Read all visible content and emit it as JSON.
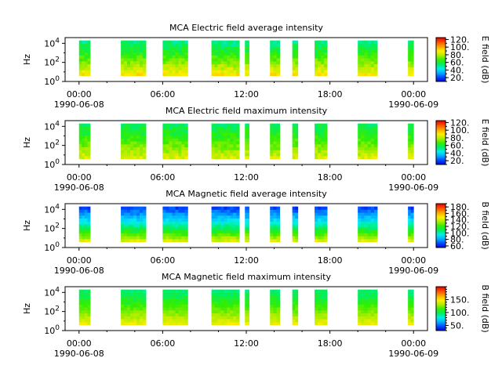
{
  "figure": {
    "colorscale": [
      "#0000cc",
      "#0044ff",
      "#00aaff",
      "#00eeee",
      "#00ee66",
      "#33ee00",
      "#aaee00",
      "#ffee00",
      "#ffaa00",
      "#ff5500",
      "#ee0000"
    ]
  },
  "chart_data": [
    {
      "type": "heatmap",
      "title": "MCA  Electric field average intensity",
      "ylabel": "Hz",
      "colorbar_label": "E field (dB)",
      "colorbar_ticks": [
        "20.",
        "40.",
        "60.",
        "80.",
        "100.",
        "120."
      ],
      "colorbar_tick_values": [
        20,
        40,
        60,
        80,
        100,
        120
      ],
      "zlim": [
        10,
        125
      ],
      "y_scale": "log",
      "y_tick_labels": [
        {
          "base": "10",
          "exp": "0"
        },
        {
          "base": "10",
          "exp": "2"
        },
        {
          "base": "10",
          "exp": "4"
        }
      ],
      "y_tick_values": [
        0,
        2,
        4
      ],
      "x_tick_labels": [
        "00:00",
        "06:00",
        "12:00",
        "18:00",
        "00:00"
      ],
      "x_tick_hours": [
        0,
        6,
        12,
        18,
        24
      ],
      "x_date_labels": [
        "1990-06-08",
        "1990-06-09"
      ],
      "x_range_hours": [
        -1.0,
        25.0
      ],
      "y_range_log10": [
        0,
        4.6
      ],
      "data_y_range_log10": [
        0.6,
        4.3
      ],
      "bottom_dB": 95,
      "top_dB": 52,
      "segments": [
        [
          0,
          0.8
        ],
        [
          3.0,
          4.8
        ],
        [
          6.0,
          7.8
        ],
        [
          9.5,
          11.5
        ],
        [
          11.9,
          12.2
        ],
        [
          13.7,
          14.4
        ],
        [
          15.3,
          15.7
        ],
        [
          16.9,
          17.8
        ],
        [
          20.0,
          21.4
        ],
        [
          23.6,
          24.0
        ]
      ]
    },
    {
      "type": "heatmap",
      "title": "MCA  Electric field maximum intensity",
      "ylabel": "Hz",
      "colorbar_label": "E field (dB)",
      "colorbar_ticks": [
        "20.",
        "40.",
        "60.",
        "80.",
        "100.",
        "120."
      ],
      "colorbar_tick_values": [
        20,
        40,
        60,
        80,
        100,
        120
      ],
      "zlim": [
        10,
        125
      ],
      "y_scale": "log",
      "y_tick_labels": [
        {
          "base": "10",
          "exp": "0"
        },
        {
          "base": "10",
          "exp": "2"
        },
        {
          "base": "10",
          "exp": "4"
        }
      ],
      "y_tick_values": [
        0,
        2,
        4
      ],
      "x_tick_labels": [
        "00:00",
        "06:00",
        "12:00",
        "18:00",
        "00:00"
      ],
      "x_tick_hours": [
        0,
        6,
        12,
        18,
        24
      ],
      "x_date_labels": [
        "1990-06-08",
        "1990-06-09"
      ],
      "x_range_hours": [
        -1.0,
        25.0
      ],
      "y_range_log10": [
        0,
        4.6
      ],
      "data_y_range_log10": [
        0.6,
        4.3
      ],
      "bottom_dB": 88,
      "top_dB": 56,
      "segments": [
        [
          0,
          0.8
        ],
        [
          3.0,
          4.8
        ],
        [
          6.0,
          7.8
        ],
        [
          9.5,
          11.5
        ],
        [
          11.9,
          12.2
        ],
        [
          13.7,
          14.4
        ],
        [
          15.3,
          15.7
        ],
        [
          16.9,
          17.8
        ],
        [
          20.0,
          21.4
        ],
        [
          23.6,
          24.0
        ]
      ]
    },
    {
      "type": "heatmap",
      "title": "MCA  Magnetic field average intensity",
      "ylabel": "Hz",
      "colorbar_label": "B field (dB)",
      "colorbar_ticks": [
        "60.",
        "80.",
        "100.",
        "120.",
        "140.",
        "160.",
        "180."
      ],
      "colorbar_tick_values": [
        60,
        80,
        100,
        120,
        140,
        160,
        180
      ],
      "zlim": [
        55,
        190
      ],
      "y_scale": "log",
      "y_tick_labels": [
        {
          "base": "10",
          "exp": "0"
        },
        {
          "base": "10",
          "exp": "2"
        },
        {
          "base": "10",
          "exp": "4"
        }
      ],
      "y_tick_values": [
        0,
        2,
        4
      ],
      "x_tick_labels": [
        "00:00",
        "06:00",
        "12:00",
        "18:00",
        "00:00"
      ],
      "x_tick_hours": [
        0,
        6,
        12,
        18,
        24
      ],
      "x_date_labels": [
        "1990-06-08",
        "1990-06-09"
      ],
      "x_range_hours": [
        -1.0,
        25.0
      ],
      "y_range_log10": [
        0,
        4.6
      ],
      "data_y_range_log10": [
        0.6,
        4.3
      ],
      "bottom_dB": 150,
      "top_dB": 65,
      "segments": [
        [
          0,
          0.8
        ],
        [
          3.0,
          4.8
        ],
        [
          6.0,
          7.8
        ],
        [
          9.5,
          11.5
        ],
        [
          11.9,
          12.2
        ],
        [
          13.7,
          14.4
        ],
        [
          15.3,
          15.7
        ],
        [
          16.9,
          17.8
        ],
        [
          20.0,
          21.4
        ],
        [
          23.6,
          24.0
        ]
      ]
    },
    {
      "type": "heatmap",
      "title": "MCA  Magnetic field maximum intensity",
      "ylabel": "Hz",
      "colorbar_label": "B field (dB)",
      "colorbar_ticks": [
        "50.",
        "100.",
        "150."
      ],
      "colorbar_tick_values": [
        50,
        100,
        150
      ],
      "zlim": [
        30,
        200
      ],
      "y_scale": "log",
      "y_tick_labels": [
        {
          "base": "10",
          "exp": "0"
        },
        {
          "base": "10",
          "exp": "2"
        },
        {
          "base": "10",
          "exp": "4"
        }
      ],
      "y_tick_values": [
        0,
        2,
        4
      ],
      "x_tick_labels": [
        "00:00",
        "06:00",
        "12:00",
        "18:00",
        "00:00"
      ],
      "x_tick_hours": [
        0,
        6,
        12,
        18,
        24
      ],
      "x_date_labels": [
        "1990-06-08",
        "1990-06-09"
      ],
      "x_range_hours": [
        -1.0,
        25.0
      ],
      "y_range_log10": [
        0,
        4.6
      ],
      "data_y_range_log10": [
        0.6,
        4.3
      ],
      "bottom_dB": 150,
      "top_dB": 95,
      "segments": [
        [
          0,
          0.8
        ],
        [
          3.0,
          4.8
        ],
        [
          6.0,
          7.8
        ],
        [
          9.5,
          11.5
        ],
        [
          11.9,
          12.2
        ],
        [
          13.7,
          14.4
        ],
        [
          15.3,
          15.7
        ],
        [
          16.9,
          17.8
        ],
        [
          20.0,
          21.4
        ],
        [
          23.6,
          24.0
        ]
      ]
    }
  ]
}
